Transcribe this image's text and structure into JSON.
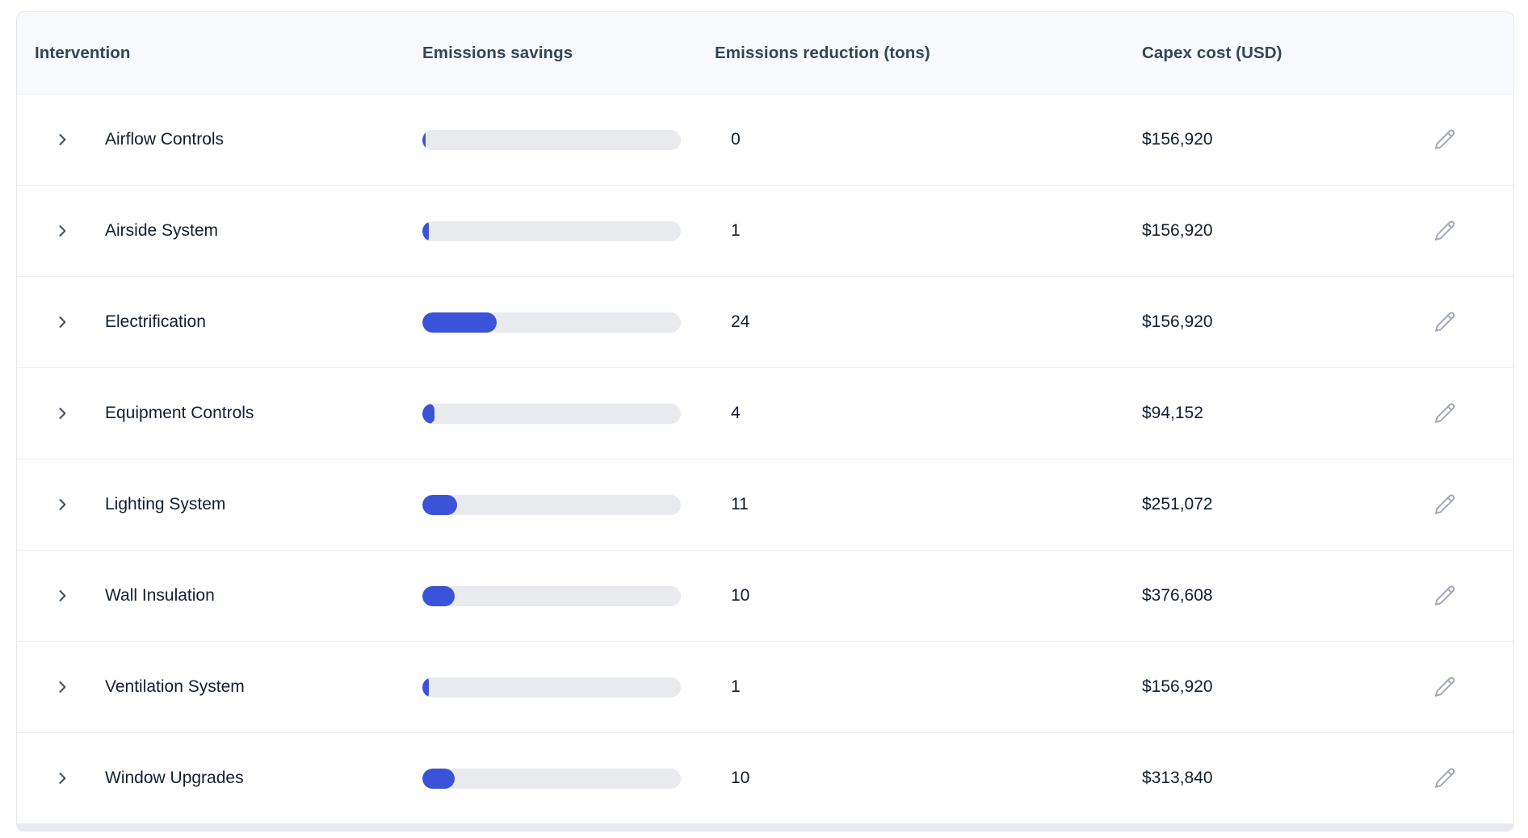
{
  "colors": {
    "bar_fill": "#3b53d8",
    "bar_track": "#e8eaee",
    "header_bg": "#f8f9fc",
    "header_text": "#364358",
    "row_text": "#121d30",
    "divider": "#eceef3",
    "chevron": "#475569",
    "edit_icon": "#a1a8b3"
  },
  "icons": {
    "expand": "chevron-right-icon",
    "edit": "pencil-icon"
  },
  "table": {
    "columns": [
      {
        "label": "Intervention"
      },
      {
        "label": "Emissions savings"
      },
      {
        "label": "Emissions reduction (tons)"
      },
      {
        "label": "Capex cost (USD)"
      }
    ],
    "rows": [
      {
        "name": "Airflow Controls",
        "bar_pct": 1.25,
        "reduction": "0",
        "capex": "$156,920"
      },
      {
        "name": "Airside System",
        "bar_pct": 2.5,
        "reduction": "1",
        "capex": "$156,920"
      },
      {
        "name": "Electrification",
        "bar_pct": 28.75,
        "reduction": "24",
        "capex": "$156,920"
      },
      {
        "name": "Equipment Controls",
        "bar_pct": 4.7,
        "reduction": "4",
        "capex": "$94,152"
      },
      {
        "name": "Lighting System",
        "bar_pct": 13.4,
        "reduction": "11",
        "capex": "$251,072"
      },
      {
        "name": "Wall Insulation",
        "bar_pct": 12.5,
        "reduction": "10",
        "capex": "$376,608"
      },
      {
        "name": "Ventilation System",
        "bar_pct": 2.5,
        "reduction": "1",
        "capex": "$156,920"
      },
      {
        "name": "Window Upgrades",
        "bar_pct": 12.5,
        "reduction": "10",
        "capex": "$313,840"
      }
    ]
  }
}
